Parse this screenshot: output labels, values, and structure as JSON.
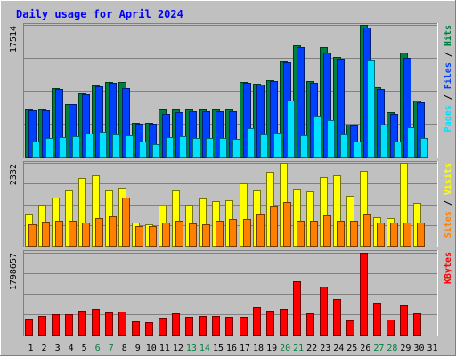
{
  "chart_data": {
    "type": "bar",
    "title": "Daily usage for April 2024",
    "categories": [
      "1",
      "2",
      "3",
      "4",
      "5",
      "6",
      "7",
      "8",
      "9",
      "10",
      "11",
      "12",
      "13",
      "14",
      "15",
      "16",
      "17",
      "18",
      "19",
      "20",
      "21",
      "22",
      "23",
      "24",
      "25",
      "26",
      "27",
      "28",
      "29",
      "30",
      "31"
    ],
    "weekend_days": [
      "6",
      "7",
      "13",
      "14",
      "20",
      "21",
      "27",
      "28"
    ],
    "panels": [
      {
        "name": "hits-files-pages",
        "max_label": "17514",
        "ylim": [
          0,
          17514
        ],
        "ylabel_parts": [
          {
            "text": "Pages",
            "color": "#00e0ff"
          },
          {
            "text": " / ",
            "color": "#000000"
          },
          {
            "text": "Files",
            "color": "#0040ff"
          },
          {
            "text": " / ",
            "color": "#000000"
          },
          {
            "text": "Hits",
            "color": "#008040"
          }
        ],
        "series": [
          {
            "name": "Hits",
            "color": "#008040",
            "offset": 0,
            "values": [
              6300,
              6300,
              9100,
              7000,
              8400,
              9500,
              9900,
              9900,
              4500,
              4500,
              6300,
              6300,
              6300,
              6300,
              6300,
              6300,
              9900,
              9700,
              10200,
              12700,
              14800,
              10000,
              14600,
              13200,
              4300,
              17500,
              9200,
              5900,
              13800,
              7500,
              0
            ]
          },
          {
            "name": "Files",
            "color": "#0040ff",
            "offset": 1,
            "values": [
              6200,
              6100,
              9000,
              7000,
              8300,
              9400,
              9800,
              9100,
              4400,
              4400,
              5700,
              5900,
              6000,
              6000,
              6000,
              6000,
              9800,
              9600,
              10100,
              12600,
              14500,
              9800,
              13800,
              13000,
              4100,
              17200,
              9000,
              5700,
              13100,
              7200,
              0
            ]
          },
          {
            "name": "Pages",
            "color": "#00e0ff",
            "offset": 2,
            "values": [
              2000,
              2500,
              2600,
              2700,
              3100,
              3300,
              2900,
              2800,
              2000,
              1700,
              2600,
              2700,
              2500,
              2500,
              2500,
              2400,
              3800,
              3000,
              3200,
              7400,
              2800,
              5400,
              4900,
              2900,
              2000,
              12900,
              4300,
              2000,
              3900,
              2500,
              0
            ]
          }
        ]
      },
      {
        "name": "visits-sites",
        "max_label": "2332",
        "ylim": [
          0,
          2332
        ],
        "ylabel_parts": [
          {
            "text": "Sites",
            "color": "#ff8000"
          },
          {
            "text": " / ",
            "color": "#000000"
          },
          {
            "text": "Visits",
            "color": "#ffff00"
          }
        ],
        "series": [
          {
            "name": "Visits",
            "color": "#ffff00",
            "offset": 0,
            "values": [
              890,
              1150,
              1350,
              1550,
              1900,
              1970,
              1560,
              1640,
              650,
              590,
              1130,
              1550,
              1150,
              1330,
              1250,
              1280,
              1750,
              1550,
              2070,
              2320,
              1600,
              1540,
              1940,
              1980,
              1400,
              2100,
              800,
              780,
              2330,
              1200,
              0
            ]
          },
          {
            "name": "Sites",
            "color": "#ff8000",
            "offset": 1,
            "values": [
              600,
              670,
              690,
              700,
              660,
              770,
              820,
              1350,
              550,
              540,
              640,
              700,
              620,
              610,
              700,
              740,
              740,
              880,
              1100,
              1240,
              690,
              690,
              850,
              690,
              690,
              880,
              660,
              660,
              660,
              660,
              0
            ]
          }
        ]
      },
      {
        "name": "kbytes",
        "max_label": "1798657",
        "ylim": [
          0,
          1798657
        ],
        "ylabel_parts": [
          {
            "text": "KBytes",
            "color": "#ff0000"
          }
        ],
        "series": [
          {
            "name": "KBytes",
            "color": "#ff0000",
            "offset": 0,
            "values": [
              360000,
              420000,
              440000,
              440000,
              530000,
              560000,
              480000,
              500000,
              290000,
              270000,
              380000,
              470000,
              390000,
              420000,
              420000,
              400000,
              400000,
              610000,
              530000,
              570000,
              1170000,
              460000,
              1050000,
              780000,
              320000,
              1800000,
              690000,
              340000,
              650000,
              470000,
              0
            ]
          }
        ]
      }
    ]
  }
}
